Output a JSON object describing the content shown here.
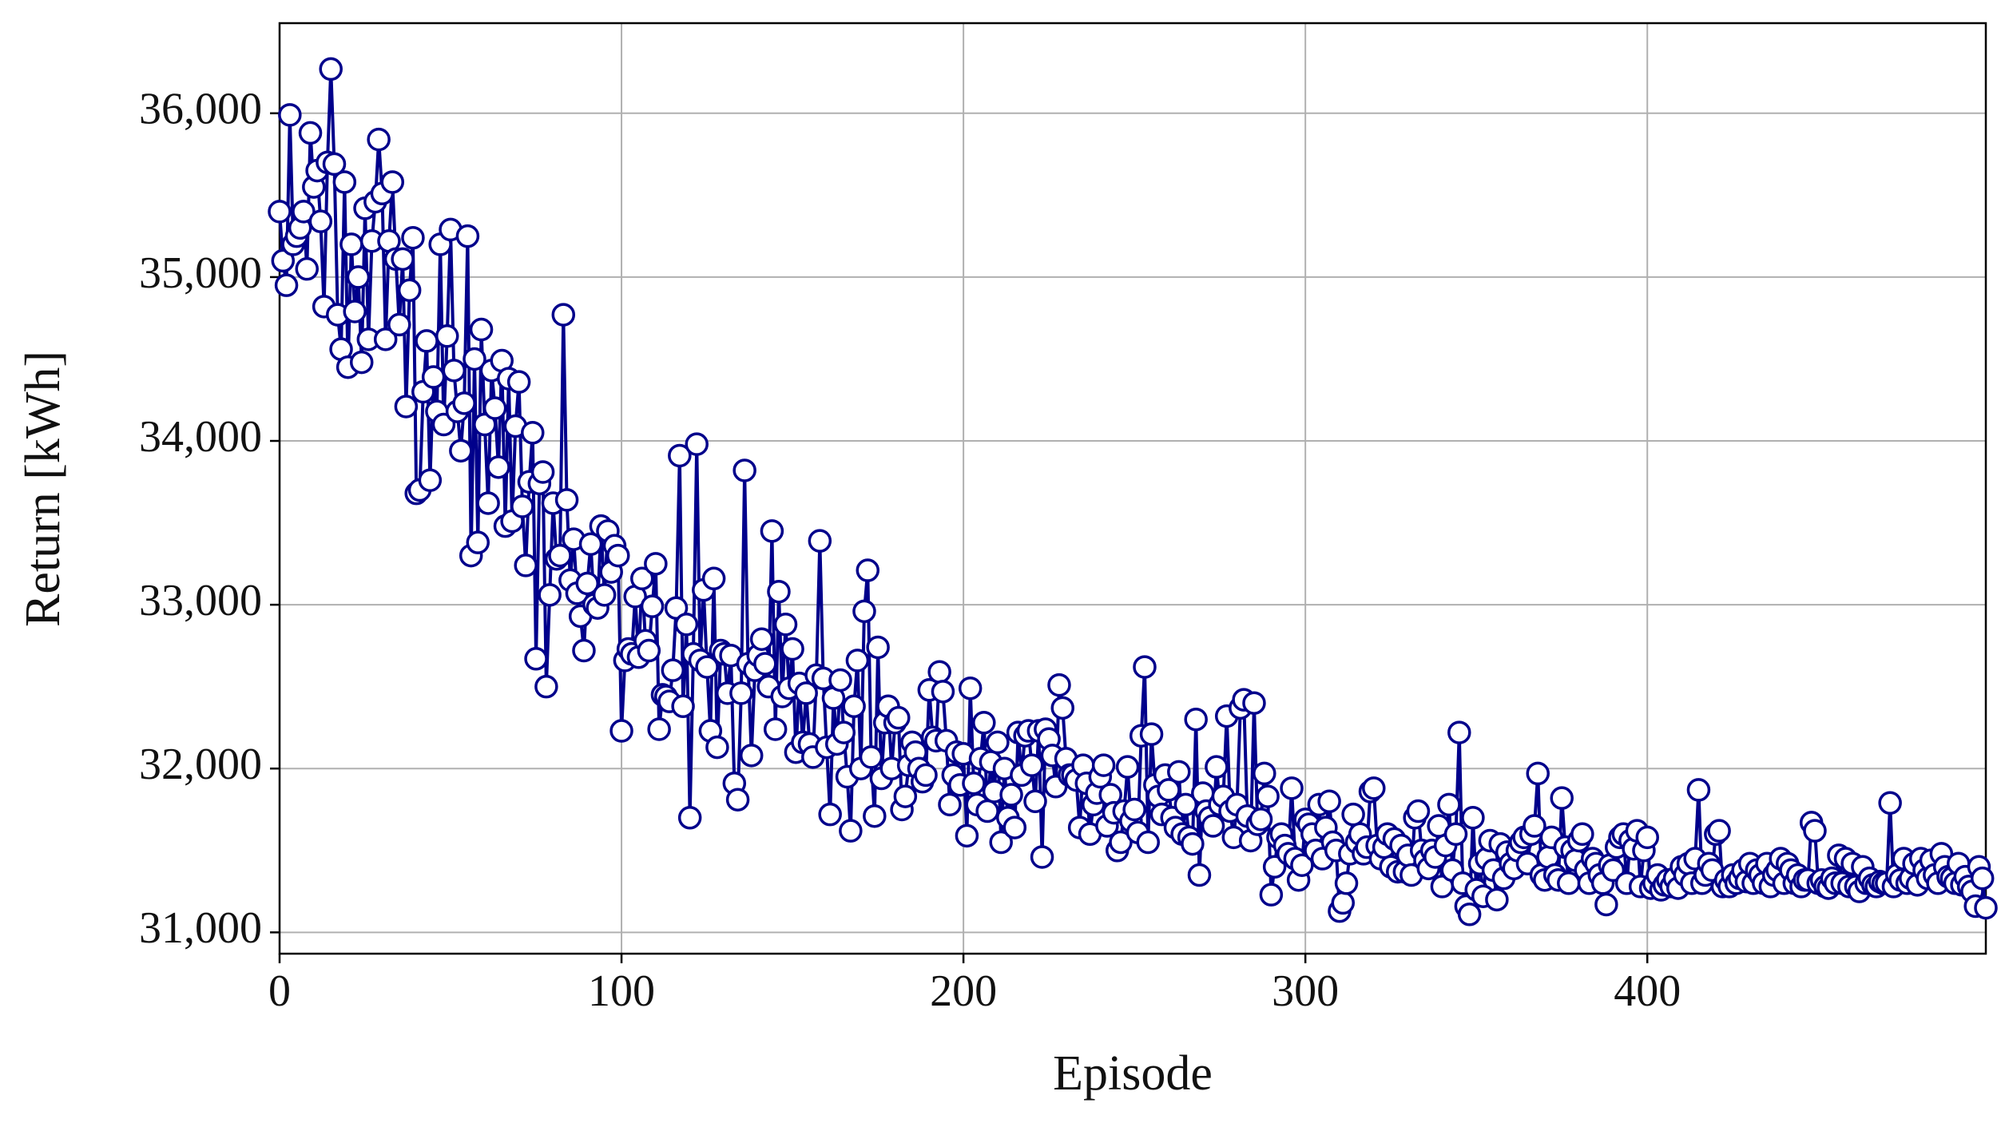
{
  "chart_data": {
    "type": "line",
    "x_label": "Episode",
    "y_label": "Return [kWh]",
    "xlim": [
      0,
      499
    ],
    "ylim": [
      30870,
      36550
    ],
    "xticks": [
      0,
      100,
      200,
      300,
      400
    ],
    "yticks": [
      {
        "value": 31000,
        "label": "31,000"
      },
      {
        "value": 32000,
        "label": "32,000"
      },
      {
        "value": 33000,
        "label": "33,000"
      },
      {
        "value": 34000,
        "label": "34,000"
      },
      {
        "value": 35000,
        "label": "35,000"
      },
      {
        "value": 36000,
        "label": "36,000"
      }
    ],
    "grid": true,
    "x": [
      0,
      1,
      2,
      3,
      4,
      5,
      6,
      7,
      8,
      9,
      10,
      11,
      12,
      13,
      14,
      15,
      16,
      17,
      18,
      19,
      20,
      21,
      22,
      23,
      24,
      25,
      26,
      27,
      28,
      29,
      30,
      31,
      32,
      33,
      34,
      35,
      36,
      37,
      38,
      39,
      40,
      41,
      42,
      43,
      44,
      45,
      46,
      47,
      48,
      49,
      50,
      51,
      52,
      53,
      54,
      55,
      56,
      57,
      58,
      59,
      60,
      61,
      62,
      63,
      64,
      65,
      66,
      67,
      68,
      69,
      70,
      71,
      72,
      73,
      74,
      75,
      76,
      77,
      78,
      79,
      80,
      81,
      82,
      83,
      84,
      85,
      86,
      87,
      88,
      89,
      90,
      91,
      92,
      93,
      94,
      95,
      96,
      97,
      98,
      99,
      100,
      101,
      102,
      103,
      104,
      105,
      106,
      107,
      108,
      109,
      110,
      111,
      112,
      113,
      114,
      115,
      116,
      117,
      118,
      119,
      120,
      121,
      122,
      123,
      124,
      125,
      126,
      127,
      128,
      129,
      130,
      131,
      132,
      133,
      134,
      135,
      136,
      137,
      138,
      139,
      140,
      141,
      142,
      143,
      144,
      145,
      146,
      147,
      148,
      149,
      150,
      151,
      152,
      153,
      154,
      155,
      156,
      157,
      158,
      159,
      160,
      161,
      162,
      163,
      164,
      165,
      166,
      167,
      168,
      169,
      170,
      171,
      172,
      173,
      174,
      175,
      176,
      177,
      178,
      179,
      180,
      181,
      182,
      183,
      184,
      185,
      186,
      187,
      188,
      189,
      190,
      191,
      192,
      193,
      194,
      195,
      196,
      197,
      198,
      199,
      200,
      201,
      202,
      203,
      204,
      205,
      206,
      207,
      208,
      209,
      210,
      211,
      212,
      213,
      214,
      215,
      216,
      217,
      218,
      219,
      220,
      221,
      222,
      223,
      224,
      225,
      226,
      227,
      228,
      229,
      230,
      231,
      232,
      233,
      234,
      235,
      236,
      237,
      238,
      239,
      240,
      241,
      242,
      243,
      244,
      245,
      246,
      247,
      248,
      249,
      250,
      251,
      252,
      253,
      254,
      255,
      256,
      257,
      258,
      259,
      260,
      261,
      262,
      263,
      264,
      265,
      266,
      267,
      268,
      269,
      270,
      271,
      272,
      273,
      274,
      275,
      276,
      277,
      278,
      279,
      280,
      281,
      282,
      283,
      284,
      285,
      286,
      287,
      288,
      289,
      290,
      291,
      292,
      293,
      294,
      295,
      296,
      297,
      298,
      299,
      300,
      301,
      302,
      303,
      304,
      305,
      306,
      307,
      308,
      309,
      310,
      311,
      312,
      313,
      314,
      315,
      316,
      317,
      318,
      319,
      320,
      321,
      322,
      323,
      324,
      325,
      326,
      327,
      328,
      329,
      330,
      331,
      332,
      333,
      334,
      335,
      336,
      337,
      338,
      339,
      340,
      341,
      342,
      343,
      344,
      345,
      346,
      347,
      348,
      349,
      350,
      351,
      352,
      353,
      354,
      355,
      356,
      357,
      358,
      359,
      360,
      361,
      362,
      363,
      364,
      365,
      366,
      367,
      368,
      369,
      370,
      371,
      372,
      373,
      374,
      375,
      376,
      377,
      378,
      379,
      380,
      381,
      382,
      383,
      384,
      385,
      386,
      387,
      388,
      389,
      390,
      391,
      392,
      393,
      394,
      395,
      396,
      397,
      398,
      399,
      400,
      401,
      402,
      403,
      404,
      405,
      406,
      407,
      408,
      409,
      410,
      411,
      412,
      413,
      414,
      415,
      416,
      417,
      418,
      419,
      420,
      421,
      422,
      423,
      424,
      425,
      426,
      427,
      428,
      429,
      430,
      431,
      432,
      433,
      434,
      435,
      436,
      437,
      438,
      439,
      440,
      441,
      442,
      443,
      444,
      445,
      446,
      447,
      448,
      449,
      450,
      451,
      452,
      453,
      454,
      455,
      456,
      457,
      458,
      459,
      460,
      461,
      462,
      463,
      464,
      465,
      466,
      467,
      468,
      469,
      470,
      471,
      472,
      473,
      474,
      475,
      476,
      477,
      478,
      479,
      480,
      481,
      482,
      483,
      484,
      485,
      486,
      487,
      488,
      489,
      490,
      491,
      492,
      493,
      494,
      495,
      496,
      497,
      498,
      499
    ],
    "series": [
      {
        "color": "#00008b",
        "values": [
          35400,
          35100,
          34950,
          35990,
          35200,
          35250,
          35300,
          35400,
          35050,
          35880,
          35550,
          35650,
          35340,
          34820,
          35700,
          36270,
          35690,
          34770,
          34560,
          35580,
          34450,
          35200,
          34790,
          35000,
          34480,
          35420,
          34620,
          35220,
          35460,
          35840,
          35510,
          34620,
          35220,
          35580,
          35110,
          34710,
          35110,
          34210,
          34920,
          35240,
          33680,
          33700,
          34300,
          34610,
          33760,
          34390,
          34180,
          35200,
          34100,
          34640,
          35290,
          34430,
          34180,
          33940,
          34230,
          35250,
          33300,
          34500,
          33380,
          34680,
          34100,
          33620,
          34430,
          34200,
          33840,
          34490,
          33480,
          34380,
          33510,
          34090,
          34360,
          33600,
          33240,
          33750,
          34050,
          32670,
          33740,
          33810,
          32500,
          33060,
          33620,
          33280,
          33300,
          34770,
          33640,
          33150,
          33400,
          33070,
          32930,
          32720,
          33130,
          33370,
          33000,
          32980,
          33480,
          33060,
          33450,
          33200,
          33360,
          33300,
          32230,
          32660,
          32730,
          32700,
          33050,
          32680,
          33160,
          32780,
          32720,
          32990,
          33250,
          32240,
          32450,
          32440,
          32410,
          32600,
          32980,
          33910,
          32380,
          32880,
          31700,
          32700,
          33980,
          32660,
          33090,
          32620,
          32230,
          33160,
          32130,
          32720,
          32700,
          32460,
          32690,
          31910,
          31810,
          32460,
          33820,
          32640,
          32080,
          32600,
          32690,
          32790,
          32640,
          32500,
          33450,
          32240,
          33080,
          32440,
          32880,
          32490,
          32730,
          32100,
          32520,
          32160,
          32460,
          32150,
          32070,
          32570,
          33390,
          32550,
          32130,
          31720,
          32430,
          32150,
          32540,
          32220,
          31950,
          31620,
          32380,
          32660,
          32000,
          32960,
          33210,
          32070,
          31710,
          32740,
          31940,
          32280,
          32380,
          32000,
          32280,
          32310,
          31750,
          31830,
          32020,
          32160,
          32100,
          32000,
          31920,
          31960,
          32480,
          32190,
          32170,
          32590,
          32470,
          32170,
          31780,
          31960,
          32100,
          31900,
          32090,
          31590,
          32490,
          31910,
          31780,
          32060,
          32280,
          31740,
          32040,
          31860,
          32160,
          31550,
          32000,
          31700,
          31840,
          31640,
          32220,
          31960,
          32200,
          32230,
          32020,
          31800,
          32230,
          31460,
          32240,
          32180,
          32080,
          31890,
          32510,
          32370,
          32060,
          31960,
          31960,
          31930,
          31640,
          32020,
          31910,
          31600,
          31780,
          31850,
          31950,
          32020,
          31650,
          31840,
          31730,
          31500,
          31550,
          31740,
          32010,
          31680,
          31750,
          31610,
          32200,
          32620,
          31550,
          32210,
          31900,
          31830,
          31720,
          31960,
          31870,
          31700,
          31640,
          31980,
          31600,
          31780,
          31580,
          31540,
          32300,
          31350,
          31850,
          31740,
          31700,
          31650,
          32010,
          31780,
          31830,
          32320,
          31740,
          31580,
          31780,
          32370,
          32420,
          31710,
          31560,
          32400,
          31660,
          31690,
          31970,
          31830,
          31230,
          31400,
          31580,
          31600,
          31530,
          31480,
          31880,
          31450,
          31320,
          31410,
          31690,
          31660,
          31600,
          31500,
          31780,
          31450,
          31640,
          31800,
          31550,
          31500,
          31130,
          31180,
          31300,
          31480,
          31720,
          31550,
          31600,
          31480,
          31520,
          31860,
          31880,
          31530,
          31450,
          31520,
          31600,
          31400,
          31570,
          31370,
          31530,
          31370,
          31470,
          31350,
          31700,
          31740,
          31500,
          31440,
          31390,
          31500,
          31460,
          31650,
          31280,
          31530,
          31780,
          31380,
          31600,
          32220,
          31300,
          31160,
          31110,
          31700,
          31260,
          31420,
          31220,
          31450,
          31560,
          31380,
          31200,
          31540,
          31330,
          31490,
          31420,
          31390,
          31500,
          31550,
          31580,
          31420,
          31600,
          31650,
          31970,
          31350,
          31320,
          31460,
          31580,
          31350,
          31320,
          31820,
          31520,
          31300,
          31500,
          31440,
          31560,
          31600,
          31380,
          31300,
          31450,
          31420,
          31350,
          31300,
          31170,
          31410,
          31380,
          31520,
          31580,
          31600,
          31300,
          31560,
          31510,
          31620,
          31280,
          31500,
          31580,
          31270,
          31300,
          31350,
          31260,
          31290,
          31320,
          31280,
          31330,
          31270,
          31400,
          31350,
          31420,
          31300,
          31450,
          31870,
          31300,
          31350,
          31420,
          31380,
          31600,
          31620,
          31280,
          31320,
          31280,
          31350,
          31300,
          31330,
          31380,
          31310,
          31420,
          31300,
          31380,
          31350,
          31300,
          31420,
          31280,
          31350,
          31380,
          31450,
          31300,
          31420,
          31380,
          31300,
          31350,
          31280,
          31320,
          31320,
          31670,
          31620,
          31300,
          31320,
          31280,
          31270,
          31330,
          31300,
          31470,
          31300,
          31450,
          31280,
          31420,
          31280,
          31250,
          31400,
          31300,
          31330,
          31290,
          31280,
          31310,
          31300,
          31300,
          31790,
          31280,
          31350,
          31320,
          31450,
          31300,
          31330,
          31420,
          31290,
          31450,
          31380,
          31330,
          31440,
          31350,
          31300,
          31480,
          31400,
          31340,
          31330,
          31300,
          31420,
          31290,
          31340,
          31280,
          31250,
          31160,
          31400,
          31330,
          31150
        ]
      }
    ]
  }
}
